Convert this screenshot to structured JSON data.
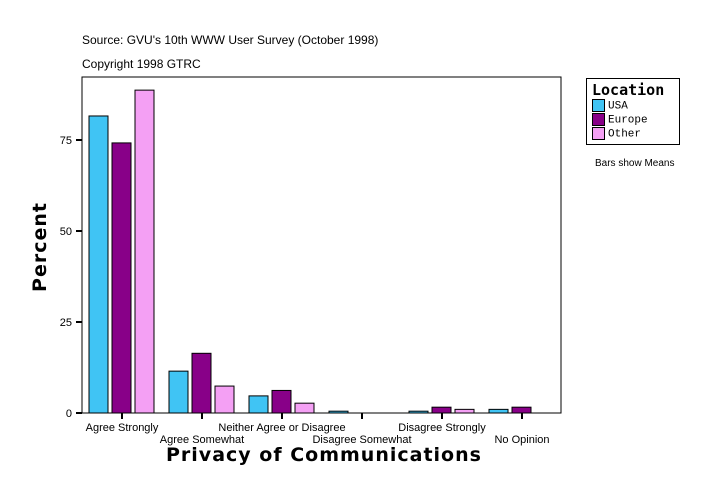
{
  "header": {
    "source": "Source: GVU's 10th WWW User Survey (October 1998)",
    "copyright": "Copyright 1998 GTRC"
  },
  "note": "Bars show Means",
  "chart_data": {
    "type": "bar",
    "xlabel": "Privacy of Communications",
    "ylabel": "Percent",
    "ylim": [
      0,
      92
    ],
    "yticks": [
      0,
      25,
      50,
      75
    ],
    "grid": false,
    "legend_title": "Location",
    "legend_placement": "right",
    "categories": [
      "Agree Strongly",
      "Agree Somewhat",
      "Neither Agree or Disagree",
      "Disagree Somewhat",
      "Disagree Strongly",
      "No Opinion"
    ],
    "series": [
      {
        "name": "USA",
        "color": "#40c4f4",
        "values": [
          81.6,
          11.5,
          4.7,
          0.5,
          0.5,
          1.0
        ]
      },
      {
        "name": "Europe",
        "color": "#880088",
        "values": [
          74.2,
          16.4,
          6.2,
          0,
          1.6,
          1.6
        ]
      },
      {
        "name": "Other",
        "color": "#f4a0f4",
        "values": [
          88.7,
          7.4,
          2.7,
          0,
          1.0,
          0
        ]
      }
    ]
  }
}
